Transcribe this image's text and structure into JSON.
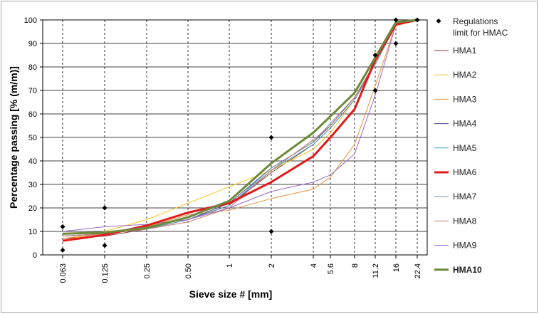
{
  "chart_data": {
    "type": "line",
    "xlabel": "Sieve size # [mm]",
    "ylabel": "Percentage passing [% (m/m)]",
    "ylim": [
      0,
      100
    ],
    "yticks": [
      0,
      10,
      20,
      30,
      40,
      50,
      60,
      70,
      80,
      90,
      100
    ],
    "categories": [
      "0.063",
      "0.125",
      "0.25",
      "0.50",
      "1",
      "2",
      "4",
      "5.6",
      "8",
      "11.2",
      "16",
      "22.4"
    ],
    "x_values": [
      0.063,
      0.125,
      0.25,
      0.5,
      1,
      2,
      4,
      5.6,
      8,
      11.2,
      16,
      22.4
    ],
    "x_scale": "categorical (log-spaced, uneven 5.6)",
    "grid": "dashed vertical and solid horizontal",
    "legend_position": "right",
    "regulations": {
      "name": "Regulations limit for HMAC",
      "color": "#000000",
      "points": [
        {
          "x": "0.063",
          "y": 12
        },
        {
          "x": "0.063",
          "y": 2
        },
        {
          "x": "0.125",
          "y": 20
        },
        {
          "x": "0.125",
          "y": 4
        },
        {
          "x": "2",
          "y": 50
        },
        {
          "x": "2",
          "y": 10
        },
        {
          "x": "11.2",
          "y": 85
        },
        {
          "x": "11.2",
          "y": 70
        },
        {
          "x": "16",
          "y": 100
        },
        {
          "x": "16",
          "y": 90
        },
        {
          "x": "22.4",
          "y": 100
        }
      ]
    },
    "series": [
      {
        "name": "HMA1",
        "color": "#8b3a3a",
        "width": 1,
        "values": [
          7,
          8,
          11,
          15,
          21,
          35,
          47,
          54,
          66,
          82,
          98,
          100
        ]
      },
      {
        "name": "HMA2",
        "color": "#f2c71e",
        "width": 1,
        "values": [
          6,
          10,
          15,
          22,
          29,
          36,
          45,
          52,
          66,
          81,
          98,
          100
        ]
      },
      {
        "name": "HMA3",
        "color": "#e8923a",
        "width": 1,
        "values": [
          7,
          9,
          12,
          17,
          19,
          24,
          28,
          33,
          47,
          72,
          98,
          100
        ]
      },
      {
        "name": "HMA4",
        "color": "#4a4a8a",
        "width": 1,
        "values": [
          8,
          9,
          11,
          15,
          22,
          37,
          48,
          55,
          67,
          82,
          98,
          100
        ]
      },
      {
        "name": "HMA5",
        "color": "#4a9fc4",
        "width": 1,
        "values": [
          8,
          9,
          11,
          15,
          21,
          36,
          47,
          54,
          66,
          81,
          98,
          100
        ]
      },
      {
        "name": "HMA6",
        "color": "#e31a1c",
        "width": 3,
        "values": [
          6,
          8.5,
          12.5,
          18,
          22,
          31,
          42,
          50,
          62,
          83,
          98,
          100
        ]
      },
      {
        "name": "HMA7",
        "color": "#6b8fa8",
        "width": 1,
        "values": [
          8,
          9,
          11,
          15,
          21,
          37,
          48,
          56,
          67,
          82,
          98,
          100
        ]
      },
      {
        "name": "HMA8",
        "color": "#c4786e",
        "width": 1,
        "values": [
          8,
          9,
          11,
          14,
          20,
          36,
          49,
          55,
          67,
          82,
          98,
          100
        ]
      },
      {
        "name": "HMA9",
        "color": "#9b6bc4",
        "width": 1,
        "values": [
          10,
          12,
          13,
          15,
          20,
          27,
          31,
          34,
          43,
          68,
          98,
          100
        ]
      },
      {
        "name": "HMA10",
        "color": "#6a8a3a",
        "width": 3,
        "values": [
          9,
          9.5,
          11.5,
          16,
          23,
          39,
          52,
          59,
          69,
          84,
          99,
          100
        ]
      }
    ]
  }
}
